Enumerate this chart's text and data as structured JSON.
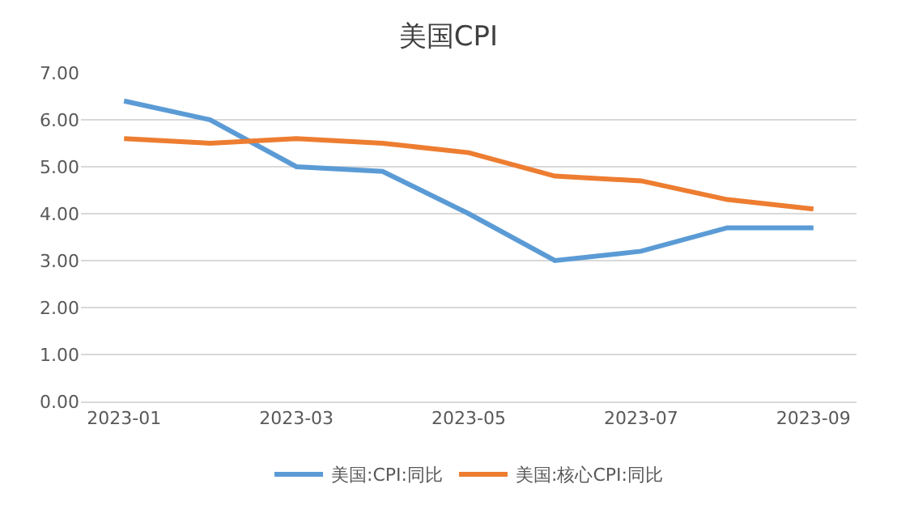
{
  "chart_data": {
    "type": "line",
    "title": "美国CPI",
    "categories": [
      "2023-01",
      null,
      "2023-03",
      null,
      "2023-05",
      null,
      "2023-07",
      null,
      "2023-09"
    ],
    "series": [
      {
        "name": "美国:CPI:同比",
        "color": "#5b9bd5",
        "values": [
          6.4,
          6.0,
          5.0,
          4.9,
          4.0,
          3.0,
          3.2,
          3.7,
          3.7
        ]
      },
      {
        "name": "美国:核心CPI:同比",
        "color": "#ed7d31",
        "values": [
          5.6,
          5.5,
          5.6,
          5.5,
          5.3,
          4.8,
          4.7,
          4.3,
          4.1
        ]
      }
    ],
    "ylim": [
      0,
      7
    ],
    "yticks": [
      {
        "value": 0,
        "label": "0.00"
      },
      {
        "value": 1,
        "label": "1.00"
      },
      {
        "value": 2,
        "label": "2.00"
      },
      {
        "value": 3,
        "label": "3.00"
      },
      {
        "value": 4,
        "label": "4.00"
      },
      {
        "value": 5,
        "label": "5.00"
      },
      {
        "value": 6,
        "label": "6.00"
      },
      {
        "value": 7,
        "label": "7.00"
      }
    ],
    "grid": "y",
    "legend": "bottom",
    "marker": "none",
    "line_style": "solid"
  }
}
